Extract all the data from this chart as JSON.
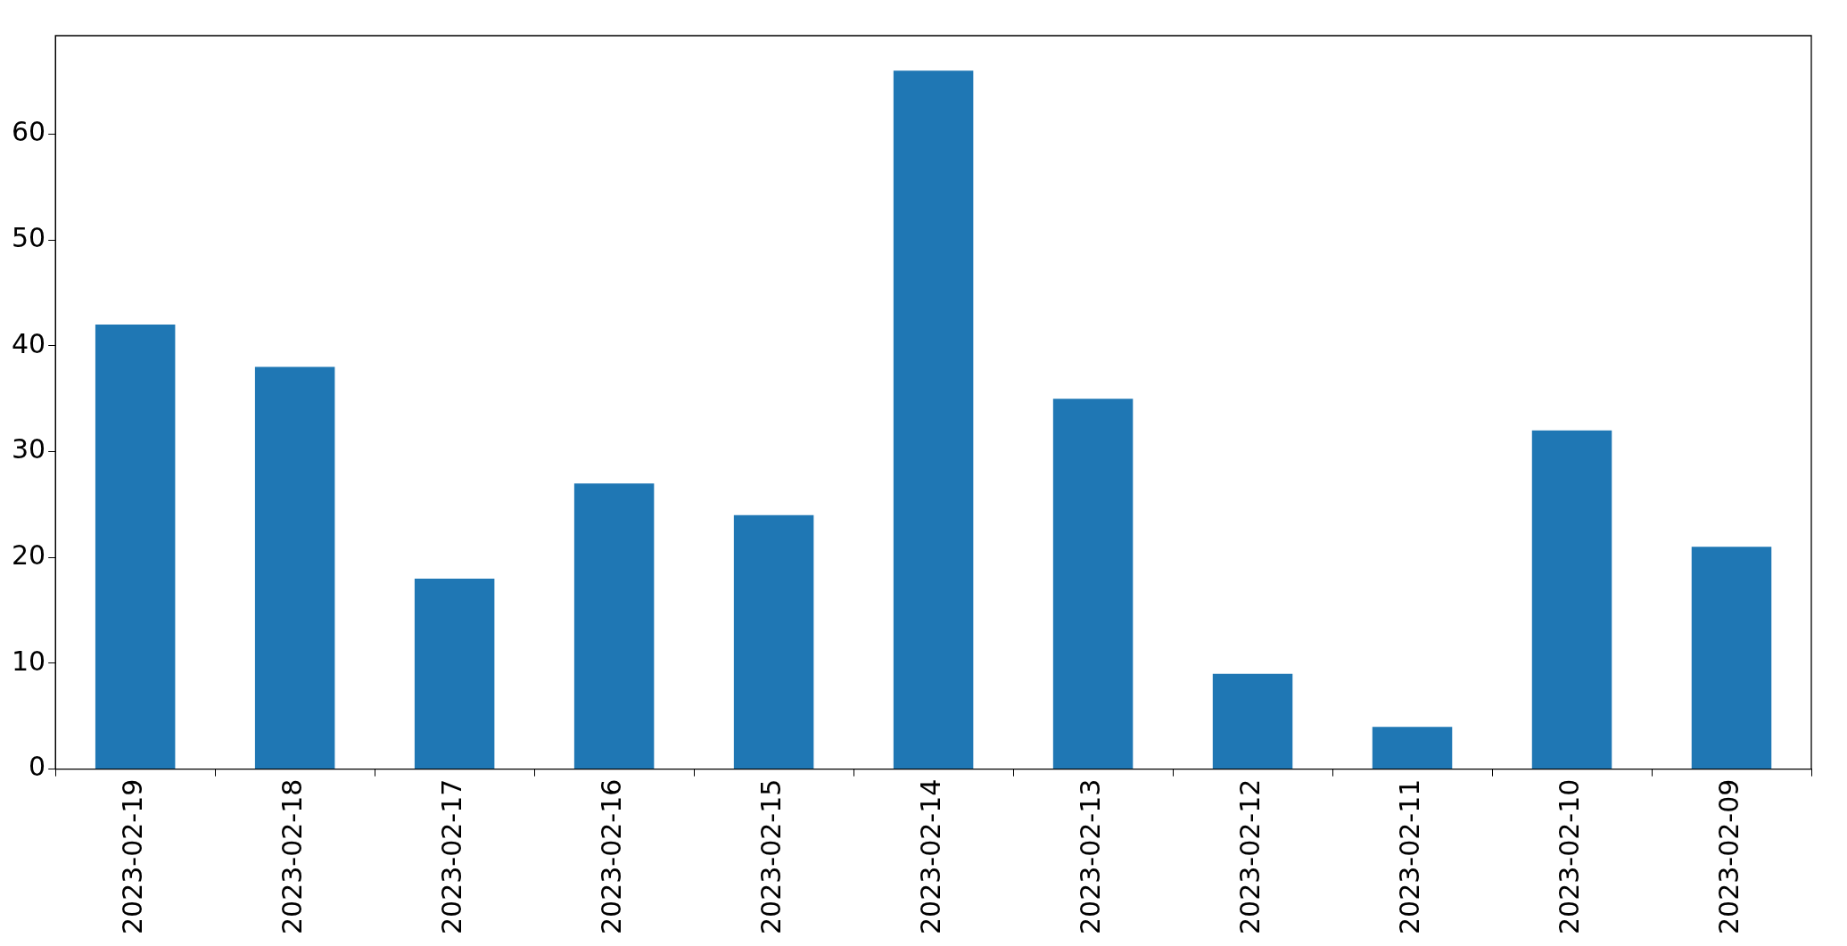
{
  "chart_data": {
    "type": "bar",
    "categories": [
      "2023-02-19",
      "2023-02-18",
      "2023-02-17",
      "2023-02-16",
      "2023-02-15",
      "2023-02-14",
      "2023-02-13",
      "2023-02-12",
      "2023-02-11",
      "2023-02-10",
      "2023-02-09"
    ],
    "values": [
      42,
      38,
      18,
      27,
      24,
      66,
      35,
      9,
      4,
      32,
      21
    ],
    "color": "#1f77b4",
    "ylim": [
      0,
      69.3
    ],
    "yticks": [
      0,
      10,
      20,
      30,
      40,
      50,
      60
    ],
    "grid": false,
    "legend": false
  }
}
